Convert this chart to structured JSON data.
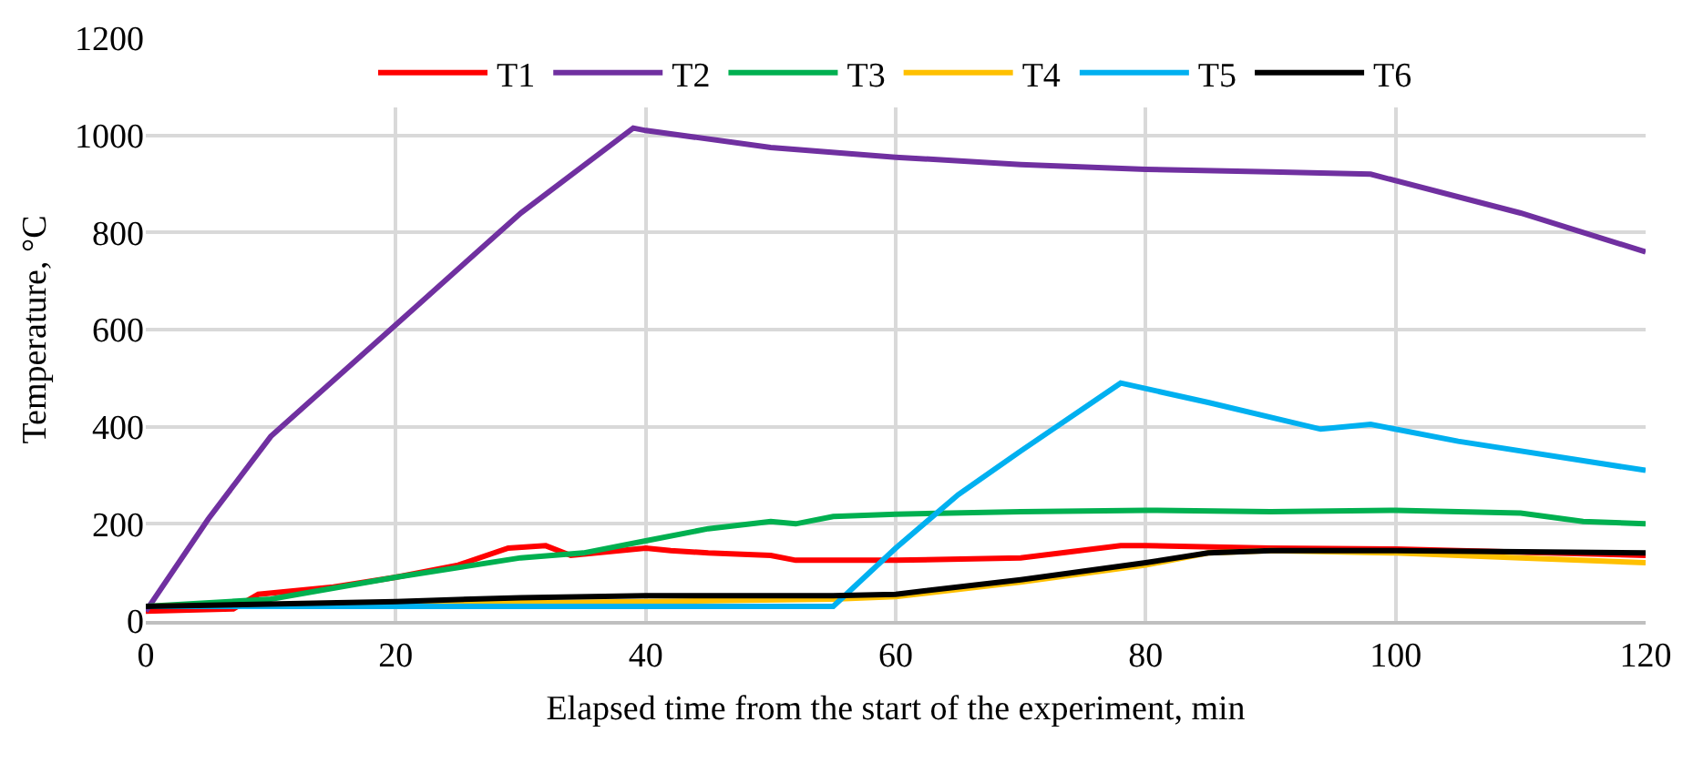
{
  "chart_data": {
    "type": "line",
    "xlabel": "Elapsed time from the start of the experiment, min",
    "ylabel": "Temperature, °C",
    "xlim": [
      0,
      120
    ],
    "xticks": [
      0,
      20,
      40,
      60,
      80,
      100,
      120
    ],
    "ylim": [
      0,
      1200
    ],
    "yticks": [
      0,
      200,
      400,
      600,
      800,
      1000,
      1200
    ],
    "grid": true,
    "legend": "top",
    "marker": "none",
    "line_style": "solid",
    "series": [
      {
        "name": "T1",
        "color": "#ff0000",
        "x": [
          0,
          7,
          9,
          15,
          20,
          25,
          29,
          32,
          34,
          40,
          42,
          45,
          50,
          52,
          60,
          70,
          78,
          80,
          90,
          100,
          120
        ],
        "values": [
          20,
          25,
          55,
          70,
          90,
          115,
          150,
          155,
          135,
          150,
          145,
          140,
          135,
          125,
          125,
          130,
          155,
          155,
          150,
          148,
          135
        ]
      },
      {
        "name": "T2",
        "color": "#7030a0",
        "x": [
          0,
          5,
          10,
          20,
          30,
          39,
          40,
          50,
          60,
          70,
          80,
          90,
          98,
          110,
          120
        ],
        "values": [
          20,
          210,
          380,
          610,
          840,
          1015,
          1010,
          975,
          955,
          940,
          930,
          925,
          920,
          840,
          760
        ]
      },
      {
        "name": "T3",
        "color": "#00b050",
        "x": [
          0,
          10,
          20,
          30,
          35,
          40,
          45,
          50,
          52,
          55,
          60,
          70,
          80,
          90,
          100,
          110,
          115,
          120
        ],
        "values": [
          30,
          45,
          90,
          130,
          140,
          165,
          190,
          205,
          200,
          215,
          220,
          225,
          228,
          225,
          228,
          222,
          205,
          200
        ]
      },
      {
        "name": "T4",
        "color": "#ffc000",
        "x": [
          0,
          20,
          40,
          55,
          60,
          70,
          80,
          85,
          90,
          100,
          110,
          120
        ],
        "values": [
          30,
          35,
          40,
          45,
          50,
          80,
          115,
          140,
          145,
          140,
          130,
          120
        ]
      },
      {
        "name": "T5",
        "color": "#00b0f0",
        "x": [
          0,
          55,
          60,
          65,
          70,
          78,
          85,
          94,
          98,
          105,
          120
        ],
        "values": [
          30,
          30,
          150,
          260,
          350,
          490,
          450,
          395,
          405,
          370,
          310
        ]
      },
      {
        "name": "T6",
        "color": "#000000",
        "x": [
          0,
          20,
          30,
          40,
          55,
          60,
          70,
          80,
          85,
          90,
          100,
          120
        ],
        "values": [
          30,
          40,
          48,
          52,
          52,
          55,
          85,
          120,
          140,
          145,
          145,
          140
        ]
      }
    ]
  }
}
